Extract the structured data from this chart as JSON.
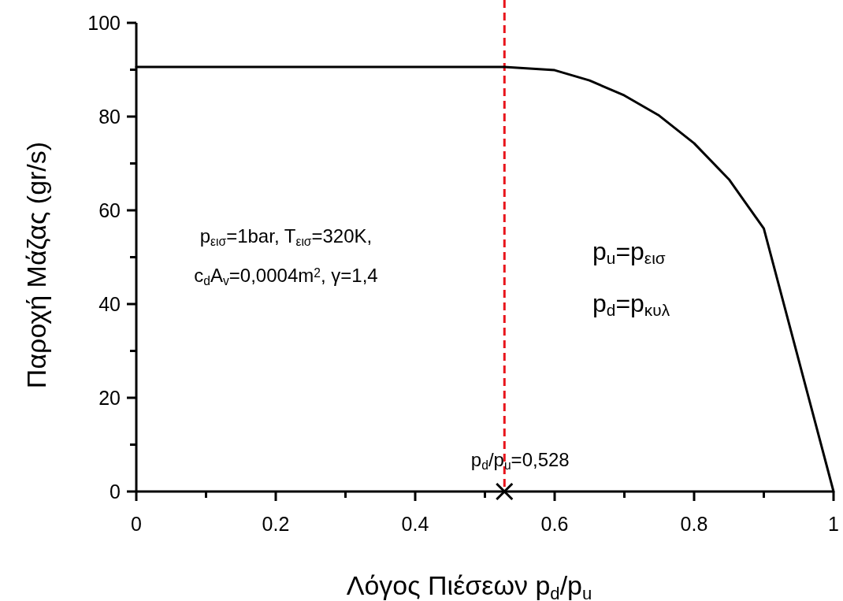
{
  "chart_data": {
    "type": "line",
    "xlabel": "Λόγος Πιέσεων p$_{d}$/p$_{u}$",
    "ylabel": "Παροχή Μάζας (gr/s)",
    "xlim": [
      0,
      1
    ],
    "ylim": [
      0,
      100
    ],
    "xticks": [
      0,
      {
        "value": 0.1,
        "label": null
      },
      {
        "value": 0.2,
        "label": "0.2"
      },
      {
        "value": 0.3,
        "label": null
      },
      {
        "value": 0.4,
        "label": "0.4"
      },
      {
        "value": 0.5,
        "label": null
      },
      {
        "value": 0.6,
        "label": "0.6"
      },
      {
        "value": 0.7,
        "label": null
      },
      {
        "value": 0.8,
        "label": "0.8"
      },
      {
        "value": 0.9,
        "label": null
      },
      1
    ],
    "yticks": [
      0,
      {
        "value": 10,
        "label": null
      },
      20,
      {
        "value": 30,
        "label": null
      },
      40,
      {
        "value": 50,
        "label": null
      },
      60,
      {
        "value": 70,
        "label": null
      },
      80,
      {
        "value": 90,
        "label": null
      },
      100
    ],
    "grid": false,
    "series": [
      {
        "color": "#000000",
        "x": [
          0,
          0.528,
          0.6,
          0.65,
          0.7,
          0.75,
          0.8,
          0.85,
          0.9,
          1
        ],
        "values": [
          90.6,
          90.6,
          89.9,
          87.7,
          84.5,
          80.2,
          74.3,
          66.6,
          56.1,
          0
        ],
        "line_style": "solid"
      },
      {
        "type": "scatter",
        "color": "#000000",
        "x": [
          0.528
        ],
        "values": [
          0
        ],
        "marker": "cross"
      }
    ],
    "ref_lines": [
      {
        "axis": "x",
        "value": 0.528,
        "label": "p$_{d}$/p$_{u}$=0,528",
        "color": "#e8141b",
        "line_style": "dashed"
      }
    ],
    "annotations": [
      "p$_{εισ}$=1bar, T$_{εισ}$=320K,",
      "c$_{d}$A$_{v}$=0,0004m$^{2}$, γ=1,4",
      "p$_{u}$=p$_{εισ}$",
      "p$_{d}$=p$_{κυλ}$"
    ]
  }
}
